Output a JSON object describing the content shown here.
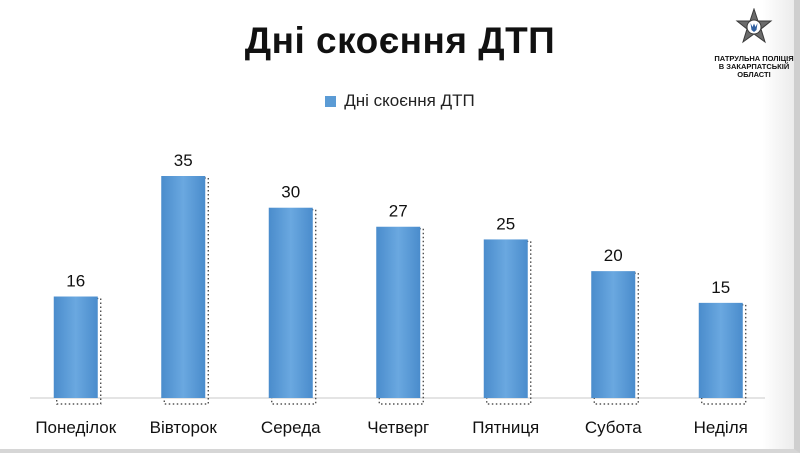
{
  "logo_text": "ПАТРУЛЬНА ПОЛІЦІЯ В ЗАКАРПАТСЬКІЙ ОБЛАСТІ",
  "colors": {
    "bar": "#5b9bd5",
    "bar_dark": "#3f7fbf",
    "bar_light": "#8fbde8",
    "text": "#111111"
  },
  "chart_data": {
    "type": "bar",
    "title": "Дні скоєння ДТП",
    "legend": "Дні скоєння ДТП",
    "legend_position": "top",
    "categories": [
      "Понеділок",
      "Вівторок",
      "Середа",
      "Четверг",
      "Пятниця",
      "Субота",
      "Неділя"
    ],
    "series": [
      {
        "name": "Дні скоєння ДТП",
        "values": [
          16,
          35,
          30,
          27,
          25,
          20,
          15
        ]
      }
    ],
    "ylim": [
      0,
      40
    ],
    "grid": false,
    "data_labels": true
  }
}
